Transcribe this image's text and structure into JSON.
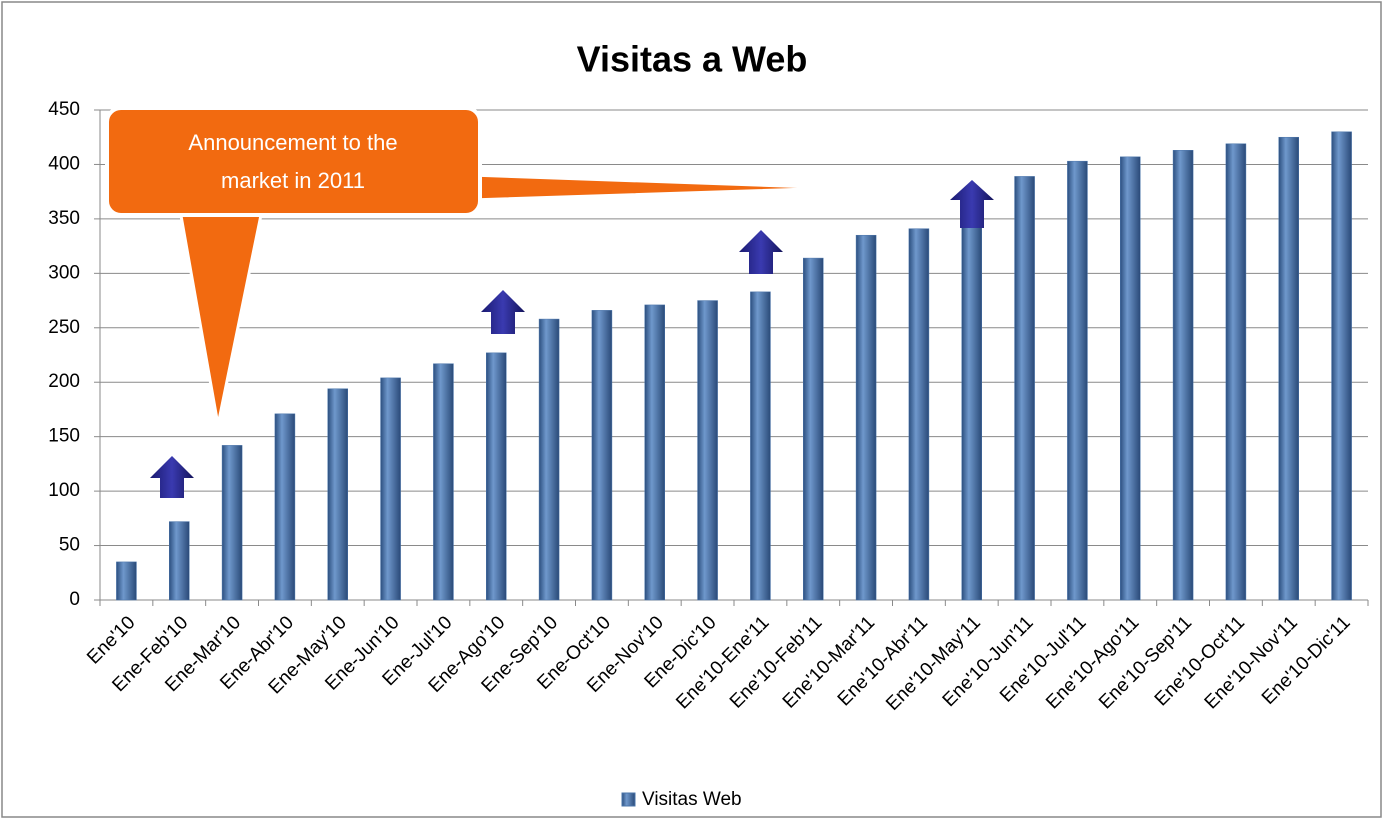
{
  "chart_data": {
    "type": "bar",
    "title": "Visitas a Web",
    "categories": [
      "Ene'10",
      "Ene-Feb'10",
      "Ene-Mar'10",
      "Ene-Abr'10",
      "Ene-May'10",
      "Ene-Jun'10",
      "Ene-Jul'10",
      "Ene-Ago'10",
      "Ene-Sep'10",
      "Ene-Oct'10",
      "Ene-Nov'10",
      "Ene-Dic'10",
      "Ene'10-Ene'11",
      "Ene'10-Feb'11",
      "Ene'10-Mar'11",
      "Ene'10-Abr'11",
      "Ene'10-May'11",
      "Ene'10-Jun'11",
      "Ene'10-Jul'11",
      "Ene'10-Ago'11",
      "Ene'10-Sep'11",
      "Ene'10-Oct'11",
      "Ene'10-Nov'11",
      "Ene'10-Dic'11"
    ],
    "series": [
      {
        "name": "Visitas Web",
        "color": "#4a74aa",
        "values": [
          35,
          72,
          142,
          171,
          194,
          204,
          217,
          227,
          258,
          266,
          271,
          275,
          283,
          314,
          335,
          341,
          357,
          389,
          403,
          407,
          413,
          419,
          425,
          430
        ]
      }
    ],
    "ylim": [
      0,
      450
    ],
    "yticks": [
      0,
      50,
      100,
      150,
      200,
      250,
      300,
      350,
      400,
      450
    ],
    "grid": true,
    "legend": "bottom",
    "annotation": [
      "Announcement to the",
      "market  in 2011"
    ]
  }
}
